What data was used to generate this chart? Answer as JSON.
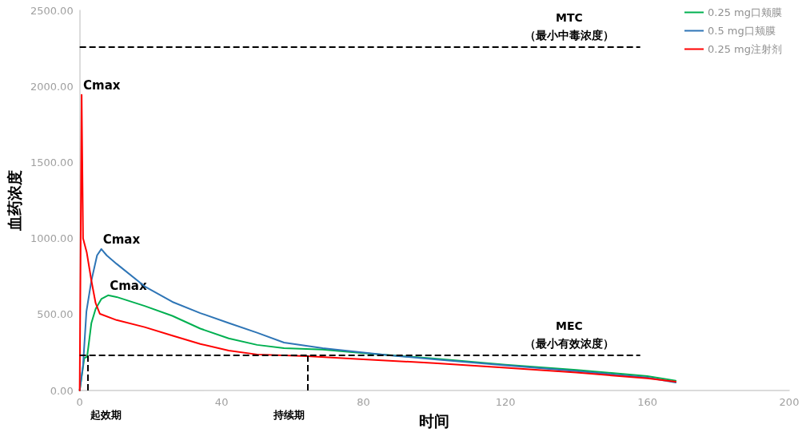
{
  "chart_data": {
    "type": "line",
    "xlabel": "时间",
    "ylabel": "血药浓度",
    "xlim": [
      0,
      200
    ],
    "xticks": [
      0,
      40,
      80,
      120,
      160,
      200
    ],
    "ylim": [
      0,
      2500
    ],
    "yticks": [
      {
        "value": 0,
        "label": "0.00"
      },
      {
        "value": 500,
        "label": "500.00"
      },
      {
        "value": 1000,
        "label": "1000.00"
      },
      {
        "value": 1500,
        "label": "1500.00"
      },
      {
        "value": 2000,
        "label": "2000.00"
      },
      {
        "value": 2500,
        "label": "2500.00"
      }
    ],
    "series": [
      {
        "name": "0.25 mg口颊膜",
        "color": "#00b050",
        "x": [
          0,
          1.3,
          2.1,
          3.3,
          4.5,
          6.1,
          8,
          10.4,
          18.3,
          26.1,
          34,
          42,
          50,
          57.6,
          68.5,
          80,
          100,
          120,
          140,
          160,
          168
        ],
        "values": [
          0,
          213,
          222,
          444,
          537,
          602,
          626,
          615,
          556,
          491,
          407,
          343,
          300,
          278,
          269,
          245,
          210,
          170,
          135,
          95,
          65
        ]
      },
      {
        "name": "0.5 mg口颊膜",
        "color": "#2e75b6",
        "x": [
          0,
          0.95,
          1.9,
          3.3,
          4.9,
          6.1,
          7.6,
          10.4,
          18.3,
          26.1,
          34,
          42,
          50,
          57.6,
          68.5,
          80,
          88,
          100,
          120,
          140,
          160,
          168
        ],
        "values": [
          0,
          167,
          519,
          722,
          889,
          930,
          889,
          833,
          685,
          583,
          509,
          444,
          380,
          315,
          278,
          250,
          230,
          205,
          165,
          128,
          85,
          52
        ]
      },
      {
        "name": "0.25 mg注射剂",
        "color": "#ff0000",
        "x": [
          0,
          0.55,
          0.95,
          2,
          3.3,
          4.5,
          5.7,
          10.4,
          18.3,
          26.1,
          34,
          42,
          50,
          64,
          80,
          100,
          120,
          140,
          160,
          168
        ],
        "values": [
          0,
          1945,
          1000,
          907,
          722,
          574,
          504,
          463,
          417,
          361,
          306,
          263,
          237,
          226,
          205,
          180,
          150,
          118,
          80,
          58
        ]
      }
    ],
    "ref_lines": [
      {
        "axis": "y",
        "value": 2260,
        "label": "MTC\n（最小中毒浓度）",
        "color": "#000000",
        "line_style": "dashed"
      },
      {
        "axis": "y",
        "value": 230,
        "label": "MEC\n（最小有效浓度）",
        "color": "#000000",
        "line_style": "dashed"
      },
      {
        "axis": "x",
        "value": 2.2,
        "label": "起效期",
        "color": "#000000",
        "line_style": "dashed"
      },
      {
        "axis": "x",
        "value": 64.3,
        "label": "持续期",
        "color": "#000000",
        "line_style": "dashed"
      }
    ],
    "annotations": [
      {
        "text": "Cmax",
        "x": 0.55,
        "y": 1945
      },
      {
        "text": "Cmax",
        "x": 6.1,
        "y": 930
      },
      {
        "text": "Cmax",
        "x": 8,
        "y": 626
      }
    ],
    "legend": "top right",
    "grid": false,
    "marker": "none",
    "line_style": "solid"
  }
}
